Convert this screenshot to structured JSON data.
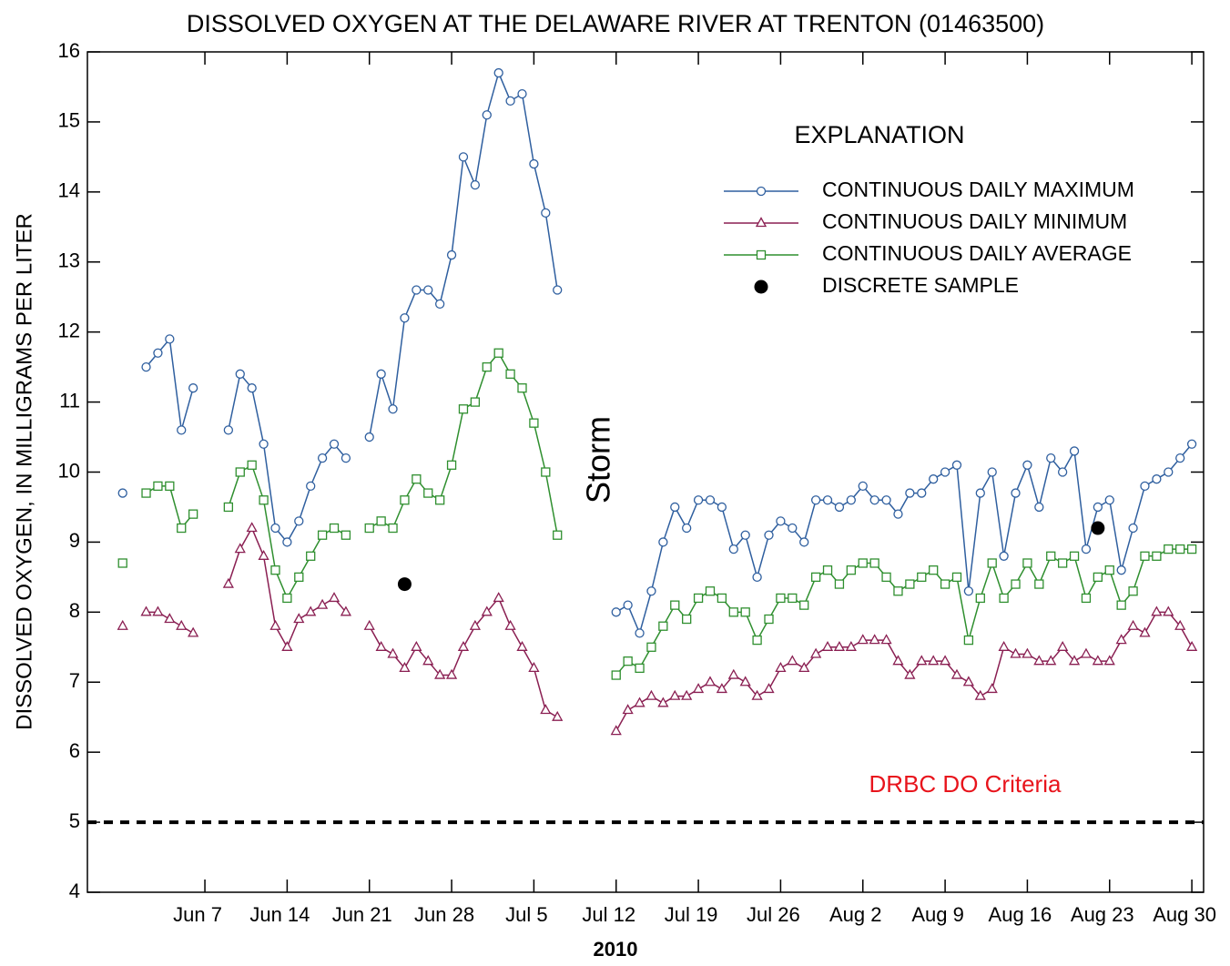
{
  "chart_data": {
    "type": "line",
    "title": "DISSOLVED OXYGEN AT THE DELAWARE RIVER AT TRENTON (01463500)",
    "xlabel": "2010",
    "ylabel": "DISSOLVED OXYGEN, IN MILLIGRAMS PER LITER",
    "xlim": [
      "2010-05-28",
      "2010-08-31"
    ],
    "xticks": [
      {
        "value": "2010-06-07",
        "label": "Jun 7"
      },
      {
        "value": "2010-06-14",
        "label": "Jun 14"
      },
      {
        "value": "2010-06-21",
        "label": "Jun 21"
      },
      {
        "value": "2010-06-28",
        "label": "Jun 28"
      },
      {
        "value": "2010-07-05",
        "label": "Jul 5"
      },
      {
        "value": "2010-07-12",
        "label": "Jul 12"
      },
      {
        "value": "2010-07-19",
        "label": "Jul 19"
      },
      {
        "value": "2010-07-26",
        "label": "Jul 26"
      },
      {
        "value": "2010-08-02",
        "label": "Aug 2"
      },
      {
        "value": "2010-08-09",
        "label": "Aug 9"
      },
      {
        "value": "2010-08-16",
        "label": "Aug 16"
      },
      {
        "value": "2010-08-23",
        "label": "Aug 23"
      },
      {
        "value": "2010-08-30",
        "label": "Aug 30"
      }
    ],
    "ylim": [
      4,
      16
    ],
    "yticks": [
      4,
      5,
      6,
      7,
      8,
      9,
      10,
      11,
      12,
      13,
      14,
      15,
      16
    ],
    "legend": "upper right",
    "legend_title": "EXPLANATION",
    "x": [
      "2010-05-31",
      "2010-06-01",
      "2010-06-02",
      "2010-06-03",
      "2010-06-04",
      "2010-06-05",
      "2010-06-06",
      "2010-06-07",
      "2010-06-08",
      "2010-06-09",
      "2010-06-10",
      "2010-06-11",
      "2010-06-12",
      "2010-06-13",
      "2010-06-14",
      "2010-06-15",
      "2010-06-16",
      "2010-06-17",
      "2010-06-18",
      "2010-06-19",
      "2010-06-20",
      "2010-06-21",
      "2010-06-22",
      "2010-06-23",
      "2010-06-24",
      "2010-06-25",
      "2010-06-26",
      "2010-06-27",
      "2010-06-28",
      "2010-06-29",
      "2010-06-30",
      "2010-07-01",
      "2010-07-02",
      "2010-07-03",
      "2010-07-04",
      "2010-07-05",
      "2010-07-06",
      "2010-07-07",
      "2010-07-08",
      "2010-07-09",
      "2010-07-10",
      "2010-07-11",
      "2010-07-12",
      "2010-07-13",
      "2010-07-14",
      "2010-07-15",
      "2010-07-16",
      "2010-07-17",
      "2010-07-18",
      "2010-07-19",
      "2010-07-20",
      "2010-07-21",
      "2010-07-22",
      "2010-07-23",
      "2010-07-24",
      "2010-07-25",
      "2010-07-26",
      "2010-07-27",
      "2010-07-28",
      "2010-07-29",
      "2010-07-30",
      "2010-07-31",
      "2010-08-01",
      "2010-08-02",
      "2010-08-03",
      "2010-08-04",
      "2010-08-05",
      "2010-08-06",
      "2010-08-07",
      "2010-08-08",
      "2010-08-09",
      "2010-08-10",
      "2010-08-11",
      "2010-08-12",
      "2010-08-13",
      "2010-08-14",
      "2010-08-15",
      "2010-08-16",
      "2010-08-17",
      "2010-08-18",
      "2010-08-19",
      "2010-08-20",
      "2010-08-21",
      "2010-08-22",
      "2010-08-23",
      "2010-08-24",
      "2010-08-25",
      "2010-08-26",
      "2010-08-27",
      "2010-08-28",
      "2010-08-29",
      "2010-08-30"
    ],
    "series": [
      {
        "name": "CONTINUOUS DAILY MAXIMUM",
        "color": "#2f5f9f",
        "marker": "circle",
        "values": [
          9.7,
          null,
          11.5,
          11.7,
          11.9,
          10.6,
          11.2,
          null,
          null,
          10.6,
          11.4,
          11.2,
          10.4,
          9.2,
          9.0,
          9.3,
          9.8,
          10.2,
          10.4,
          10.2,
          null,
          10.5,
          11.4,
          10.9,
          12.2,
          12.6,
          12.6,
          12.4,
          13.1,
          14.5,
          14.1,
          15.1,
          15.7,
          15.3,
          15.4,
          14.4,
          13.7,
          12.6,
          null,
          null,
          null,
          null,
          8.0,
          8.1,
          7.7,
          8.3,
          9.0,
          9.5,
          9.2,
          9.6,
          9.6,
          9.5,
          8.9,
          9.1,
          8.5,
          9.1,
          9.3,
          9.2,
          9.0,
          9.6,
          9.6,
          9.5,
          9.6,
          9.8,
          9.6,
          9.6,
          9.4,
          9.7,
          9.7,
          9.9,
          10.0,
          10.1,
          8.3,
          9.7,
          10.0,
          8.8,
          9.7,
          10.1,
          9.5,
          10.2,
          10.0,
          10.3,
          8.9,
          9.5,
          9.6,
          8.6,
          9.2,
          9.8,
          9.9,
          10.0,
          10.2,
          10.4
        ]
      },
      {
        "name": "CONTINUOUS DAILY MINIMUM",
        "color": "#8a1f52",
        "marker": "triangle",
        "values": [
          7.8,
          null,
          8.0,
          8.0,
          7.9,
          7.8,
          7.7,
          null,
          null,
          8.4,
          8.9,
          9.2,
          8.8,
          7.8,
          7.5,
          7.9,
          8.0,
          8.1,
          8.2,
          8.0,
          null,
          7.8,
          7.5,
          7.4,
          7.2,
          7.5,
          7.3,
          7.1,
          7.1,
          7.5,
          7.8,
          8.0,
          8.2,
          7.8,
          7.5,
          7.2,
          6.6,
          6.5,
          null,
          null,
          null,
          null,
          6.3,
          6.6,
          6.7,
          6.8,
          6.7,
          6.8,
          6.8,
          6.9,
          7.0,
          6.9,
          7.1,
          7.0,
          6.8,
          6.9,
          7.2,
          7.3,
          7.2,
          7.4,
          7.5,
          7.5,
          7.5,
          7.6,
          7.6,
          7.6,
          7.3,
          7.1,
          7.3,
          7.3,
          7.3,
          7.1,
          7.0,
          6.8,
          6.9,
          7.5,
          7.4,
          7.4,
          7.3,
          7.3,
          7.5,
          7.3,
          7.4,
          7.3,
          7.3,
          7.6,
          7.8,
          7.7,
          8.0,
          8.0,
          7.8,
          7.5
        ]
      },
      {
        "name": "CONTINUOUS DAILY AVERAGE",
        "color": "#2f8f2f",
        "marker": "square",
        "values": [
          8.7,
          null,
          9.7,
          9.8,
          9.8,
          9.2,
          9.4,
          null,
          null,
          9.5,
          10.0,
          10.1,
          9.6,
          8.6,
          8.2,
          8.5,
          8.8,
          9.1,
          9.2,
          9.1,
          null,
          9.2,
          9.3,
          9.2,
          9.6,
          9.9,
          9.7,
          9.6,
          10.1,
          10.9,
          11.0,
          11.5,
          11.7,
          11.4,
          11.2,
          10.7,
          10.0,
          9.1,
          null,
          null,
          null,
          null,
          7.1,
          7.3,
          7.2,
          7.5,
          7.8,
          8.1,
          7.9,
          8.2,
          8.3,
          8.2,
          8.0,
          8.0,
          7.6,
          7.9,
          8.2,
          8.2,
          8.1,
          8.5,
          8.6,
          8.4,
          8.6,
          8.7,
          8.7,
          8.5,
          8.3,
          8.4,
          8.5,
          8.6,
          8.4,
          8.5,
          7.6,
          8.2,
          8.7,
          8.2,
          8.4,
          8.7,
          8.4,
          8.8,
          8.7,
          8.8,
          8.2,
          8.5,
          8.6,
          8.1,
          8.3,
          8.8,
          8.8,
          8.9,
          8.9,
          8.9
        ]
      },
      {
        "name": "DISCRETE SAMPLE",
        "color": "#000000",
        "marker": "dot",
        "line": false,
        "x": [
          "2010-06-24",
          "2010-08-22"
        ],
        "values": [
          8.4,
          9.2
        ]
      }
    ],
    "reference_line": {
      "value": 5,
      "label": "DRBC DO Criteria",
      "color": "#000000",
      "label_color": "#e8141c"
    },
    "annotation": "Storm"
  }
}
